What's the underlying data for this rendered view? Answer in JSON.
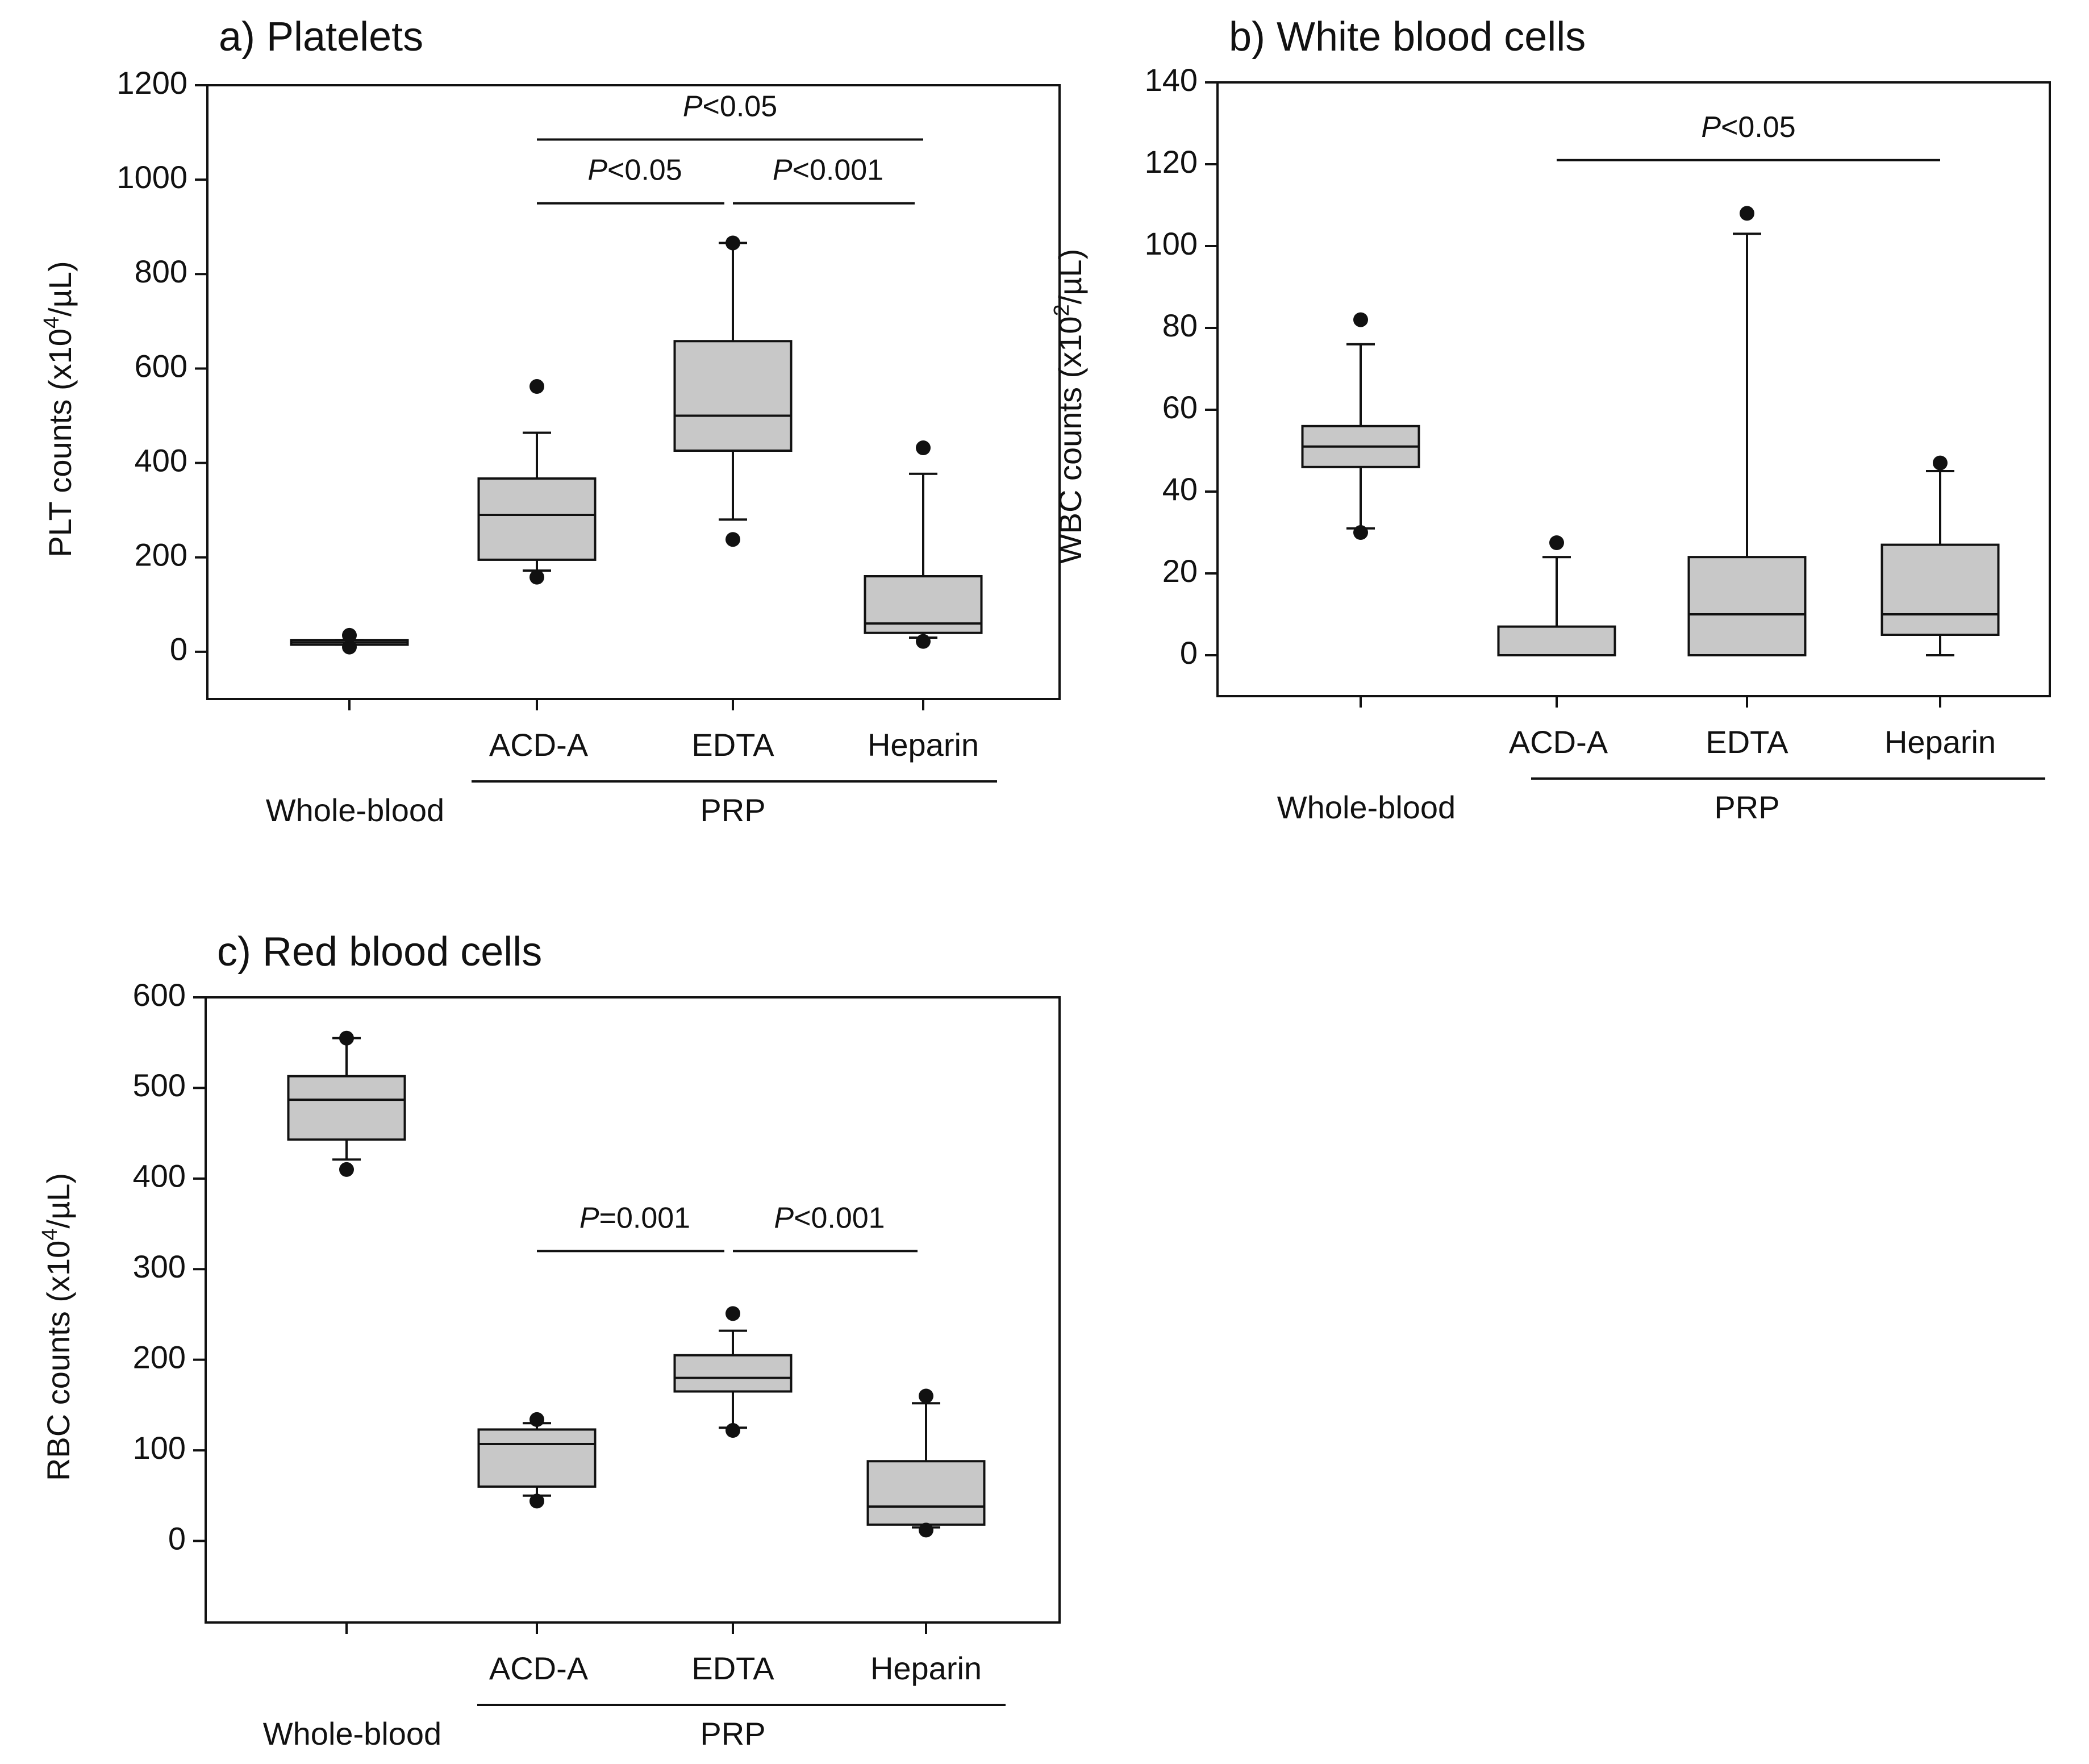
{
  "chart_data": [
    {
      "type": "box",
      "title": "a) Platelets",
      "ylabel": "PLT counts (x10",
      "ylabel_sup": "4",
      "ylabel_unit": "/µL)",
      "ylim": [
        -100,
        1200
      ],
      "yticks": [
        0,
        200,
        400,
        600,
        800,
        1000,
        1200
      ],
      "categories": [
        "Whole-blood",
        "ACD-A",
        "EDTA",
        "Heparin"
      ],
      "group_label": "PRP",
      "box_color": "#c8c8c8",
      "boxes": [
        {
          "category": "Whole-blood",
          "q1": 15,
          "median": 20,
          "q3": 25,
          "whisker_low": 15,
          "whisker_high": 25,
          "outliers": [
            10,
            35
          ]
        },
        {
          "category": "ACD-A",
          "q1": 195,
          "median": 290,
          "q3": 367,
          "whisker_low": 172,
          "whisker_high": 464,
          "outliers": [
            158,
            562
          ]
        },
        {
          "category": "EDTA",
          "q1": 426,
          "median": 500,
          "q3": 658,
          "whisker_low": 280,
          "whisker_high": 866,
          "outliers": [
            238,
            866
          ]
        },
        {
          "category": "Heparin",
          "q1": 40,
          "median": 60,
          "q3": 160,
          "whisker_low": 30,
          "whisker_high": 377,
          "outliers": [
            22,
            432
          ]
        }
      ],
      "significance": [
        {
          "from": "ACD-A",
          "to": "Heparin",
          "p_italic": "P",
          "p_rest": "<0.05",
          "y": 1085
        },
        {
          "from": "ACD-A",
          "to": "EDTA",
          "p_italic": "P",
          "p_rest": "<0.05",
          "y": 950
        },
        {
          "from": "EDTA",
          "to": "Heparin",
          "p_italic": "P",
          "p_rest": "<0.001",
          "y": 950
        }
      ]
    },
    {
      "type": "box",
      "title": "b) White blood cells",
      "ylabel": "WBC counts (x10",
      "ylabel_sup": "2",
      "ylabel_unit": "/µL)",
      "ylim": [
        -10,
        140
      ],
      "yticks": [
        0,
        20,
        40,
        60,
        80,
        100,
        120,
        140
      ],
      "categories": [
        "Whole-blood",
        "ACD-A",
        "EDTA",
        "Heparin"
      ],
      "group_label": "PRP",
      "box_color": "#c8c8c8",
      "boxes": [
        {
          "category": "Whole-blood",
          "q1": 46,
          "median": 51,
          "q3": 56,
          "whisker_low": 31,
          "whisker_high": 76,
          "outliers": [
            30,
            82
          ]
        },
        {
          "category": "ACD-A",
          "q1": 0,
          "median": 0,
          "q3": 7,
          "whisker_low": 0,
          "whisker_high": 24,
          "outliers": [
            27.5
          ]
        },
        {
          "category": "EDTA",
          "q1": 0,
          "median": 10,
          "q3": 24,
          "whisker_low": 0,
          "whisker_high": 103,
          "outliers": [
            108
          ]
        },
        {
          "category": "Heparin",
          "q1": 5,
          "median": 10,
          "q3": 27,
          "whisker_low": 0,
          "whisker_high": 45,
          "outliers": [
            47
          ]
        }
      ],
      "significance": [
        {
          "from": "ACD-A",
          "to": "Heparin",
          "p_italic": "P",
          "p_rest": "<0.05",
          "y": 121
        }
      ]
    },
    {
      "type": "box",
      "title": "c) Red blood cells",
      "ylabel": "RBC counts (x10",
      "ylabel_sup": "4",
      "ylabel_unit": "/µL)",
      "ylim": [
        -90,
        600
      ],
      "yticks": [
        0,
        100,
        200,
        300,
        400,
        500,
        600
      ],
      "categories": [
        "Whole-blood",
        "ACD-A",
        "EDTA",
        "Heparin"
      ],
      "group_label": "PRP",
      "box_color": "#c8c8c8",
      "boxes": [
        {
          "category": "Whole-blood",
          "q1": 443,
          "median": 487,
          "q3": 513,
          "whisker_low": 421,
          "whisker_high": 555,
          "outliers": [
            410,
            555
          ]
        },
        {
          "category": "ACD-A",
          "q1": 60,
          "median": 107,
          "q3": 123,
          "whisker_low": 50,
          "whisker_high": 130,
          "outliers": [
            44,
            134
          ]
        },
        {
          "category": "EDTA",
          "q1": 165,
          "median": 180,
          "q3": 205,
          "whisker_low": 125,
          "whisker_high": 232,
          "outliers": [
            122,
            251
          ]
        },
        {
          "category": "Heparin",
          "q1": 18,
          "median": 38,
          "q3": 88,
          "whisker_low": 15,
          "whisker_high": 152,
          "outliers": [
            12,
            160
          ]
        }
      ],
      "significance": [
        {
          "from": "ACD-A",
          "to": "EDTA",
          "p_italic": "P",
          "p_rest": "=0.001",
          "y": 320
        },
        {
          "from": "EDTA",
          "to": "Heparin",
          "p_italic": "P",
          "p_rest": "<0.001",
          "y": 320
        }
      ]
    }
  ]
}
